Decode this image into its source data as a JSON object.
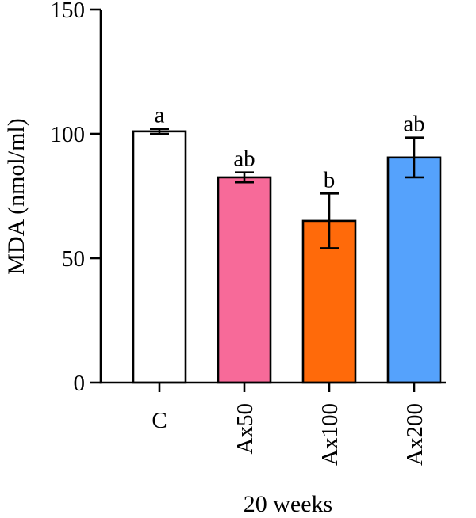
{
  "chart_data": {
    "type": "bar",
    "title": "",
    "xlabel": "20 weeks",
    "ylabel": "MDA (nmol/ml)",
    "ylim": [
      0,
      150
    ],
    "yticks": [
      0,
      50,
      100,
      150
    ],
    "categories": [
      "C",
      "Ax50",
      "Ax100",
      "Ax200"
    ],
    "values": [
      101,
      82.5,
      65,
      90.5
    ],
    "errors": [
      1,
      2,
      11,
      8
    ],
    "significance": [
      "a",
      "ab",
      "b",
      "ab"
    ],
    "colors": [
      "#ffffff",
      "#f76a99",
      "#ff6a0a",
      "#55a2fc"
    ],
    "grid": false,
    "legend": "none"
  }
}
